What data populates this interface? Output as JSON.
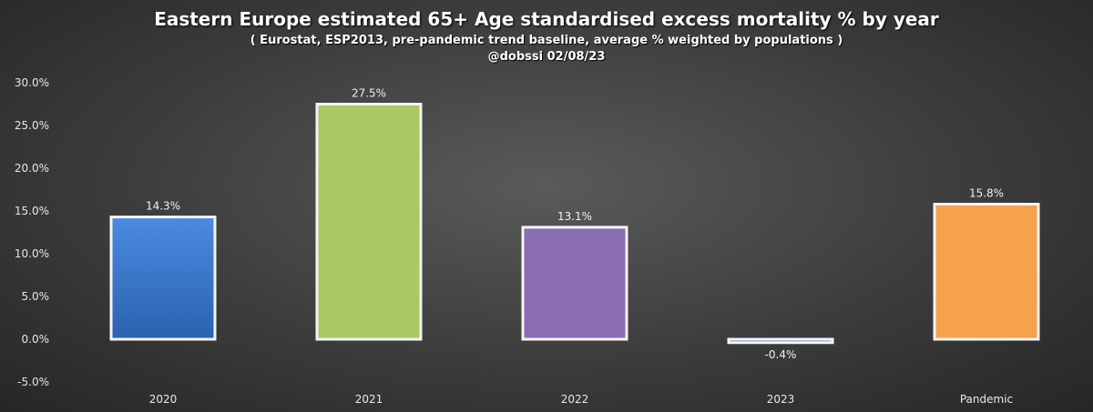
{
  "chart_data": {
    "type": "bar",
    "title": "Eastern Europe estimated 65+ Age standardised excess mortality % by year",
    "subtitle": "( Eurostat, ESP2013, pre-pandemic trend baseline, average % weighted by populations )",
    "credit": "@dobssi 02/08/23",
    "categories": [
      "2020",
      "2021",
      "2022",
      "2023",
      "Pandemic"
    ],
    "values": [
      14.3,
      27.5,
      13.1,
      -0.4,
      15.8
    ],
    "data_labels": [
      "14.3%",
      "27.5%",
      "13.1%",
      "-0.4%",
      "15.8%"
    ],
    "bar_colors": [
      "#3f7fd6",
      "#a9c964",
      "#8a6db0",
      "#4f86c6",
      "#f7a14a"
    ],
    "ylim": [
      -5,
      30
    ],
    "yticks": [
      30,
      25,
      20,
      15,
      10,
      5,
      0,
      -5
    ],
    "ytick_labels": [
      "30.0%",
      "25.0%",
      "20.0%",
      "15.0%",
      "10.0%",
      "5.0%",
      "0.0%",
      "-5.0%"
    ],
    "xlabel": "",
    "ylabel": "",
    "grid": false,
    "legend": "none"
  }
}
